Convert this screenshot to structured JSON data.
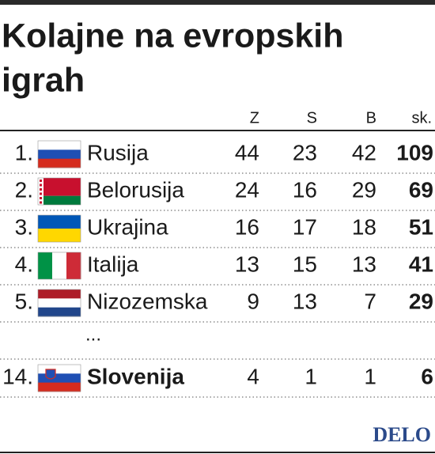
{
  "header": {
    "title": [
      "Kolajne na evropskih",
      "igrah"
    ]
  },
  "table": {
    "columns": [
      "Z",
      "S",
      "B",
      "sk."
    ],
    "rows": [
      [
        "1.",
        "Rusija",
        44,
        23,
        42,
        109
      ],
      [
        "2.",
        "Belorusija",
        24,
        16,
        29,
        69
      ],
      [
        "3.",
        "Ukrajina",
        16,
        17,
        18,
        51
      ],
      [
        "4.",
        "Italija",
        13,
        15,
        13,
        41
      ],
      [
        "5.",
        "Nizozemska",
        9,
        13,
        7,
        29
      ]
    ],
    "ellipsis": "...",
    "highlight_row": [
      "14.",
      "Slovenija",
      4,
      1,
      1,
      6
    ]
  },
  "source": "DELO"
}
